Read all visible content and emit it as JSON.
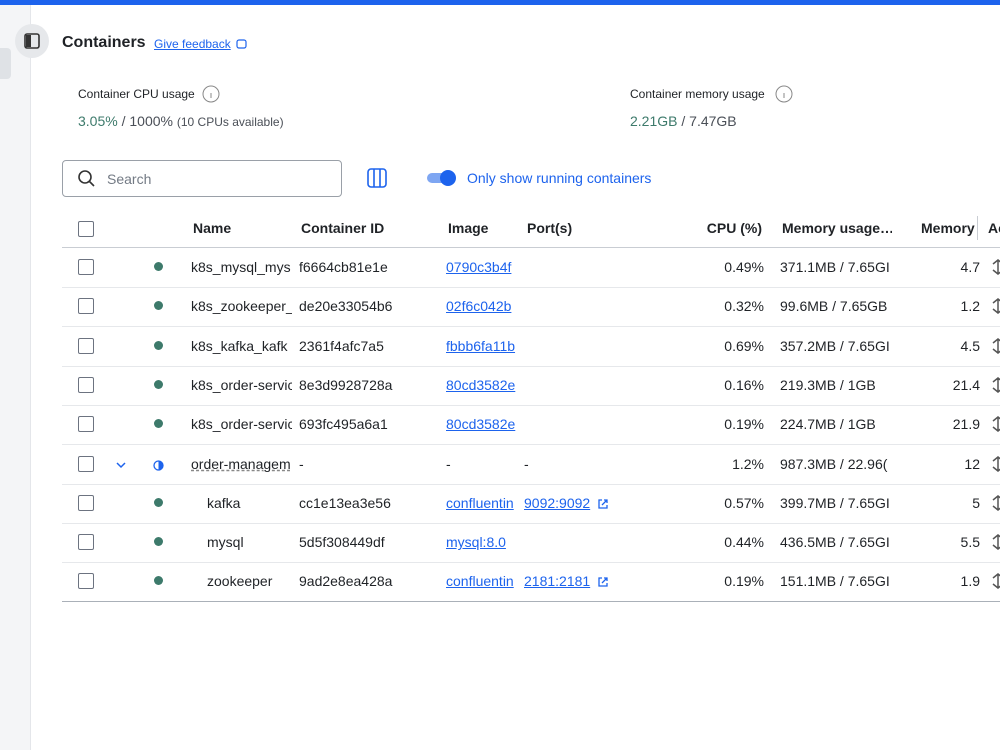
{
  "header": {
    "title": "Containers",
    "feedback": "Give feedback"
  },
  "stats": {
    "cpu": {
      "label": "Container CPU usage",
      "value": "3.05%",
      "total": "/ 1000%",
      "note": "(10 CPUs available)"
    },
    "memory": {
      "label": "Container memory usage",
      "value": "2.21GB",
      "total": "/ 7.47GB"
    }
  },
  "toolbar": {
    "search_placeholder": "Search",
    "toggle_label": "Only show running containers"
  },
  "table": {
    "columns": [
      "Name",
      "Container ID",
      "Image",
      "Port(s)",
      "CPU (%)",
      "Memory usage…",
      "Memory",
      "Ac"
    ],
    "rows": [
      {
        "name": "k8s_mysql_mys",
        "id": "f6664cb81e1e",
        "image": "0790c3b4f",
        "cpu": "0.49%",
        "mem": "371.1MB / 7.65GI",
        "memory": "4.7"
      },
      {
        "name": "k8s_zookeeper_",
        "id": "de20e33054b6",
        "image": "02f6c042b",
        "cpu": "0.32%",
        "mem": "99.6MB / 7.65GB",
        "memory": "1.2"
      },
      {
        "name": "k8s_kafka_kafk",
        "id": "2361f4afc7a5",
        "image": "fbbb6fa11b",
        "cpu": "0.69%",
        "mem": "357.2MB / 7.65GI",
        "memory": "4.5"
      },
      {
        "name": "k8s_order-servic",
        "id": "8e3d9928728a",
        "image": "80cd3582e",
        "cpu": "0.16%",
        "mem": "219.3MB / 1GB",
        "memory": "21.4"
      },
      {
        "name": "k8s_order-servic",
        "id": "693fc495a6a1",
        "image": "80cd3582e",
        "cpu": "0.19%",
        "mem": "224.7MB / 1GB",
        "memory": "21.9"
      },
      {
        "name": "order-managem",
        "id": "-",
        "image": "-",
        "port": "-",
        "cpu": "1.2%",
        "mem": "987.3MB / 22.96(",
        "memory": "12",
        "group": true
      },
      {
        "name": "kafka",
        "id": "cc1e13ea3e56",
        "image": "confluentin",
        "port": "9092:9092",
        "cpu": "0.57%",
        "mem": "399.7MB / 7.65GI",
        "memory": "5",
        "child": true
      },
      {
        "name": "mysql",
        "id": "5d5f308449df",
        "image": "mysql:8.0",
        "cpu": "0.44%",
        "mem": "436.5MB / 7.65GI",
        "memory": "5.5",
        "child": true
      },
      {
        "name": "zookeeper",
        "id": "9ad2e8ea428a",
        "image": "confluentin",
        "port": "2181:2181",
        "cpu": "0.19%",
        "mem": "151.1MB / 7.65GI",
        "memory": "1.9",
        "child": true
      }
    ]
  }
}
